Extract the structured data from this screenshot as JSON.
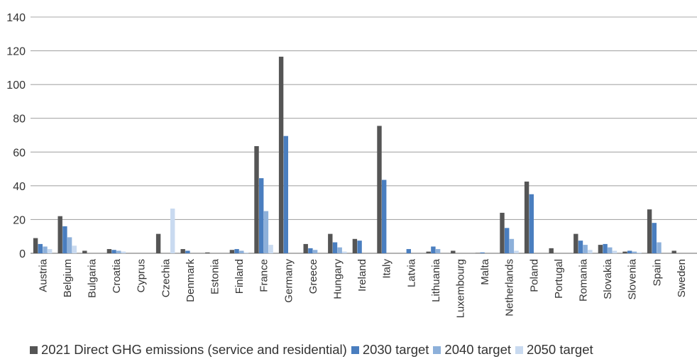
{
  "chart_data": {
    "type": "bar",
    "title": "",
    "xlabel": "",
    "ylabel": "",
    "ylim": [
      0,
      140
    ],
    "yticks": [
      0,
      20,
      40,
      60,
      80,
      100,
      120,
      140
    ],
    "grid": true,
    "legend_position": "bottom",
    "categories": [
      "Austria",
      "Belgium",
      "Bulgaria",
      "Croatia",
      "Cyprus",
      "Czechia",
      "Denmark",
      "Estonia",
      "Finland",
      "France",
      "Germany",
      "Greece",
      "Hungary",
      "Ireland",
      "Italy",
      "Latvia",
      "Lithuania",
      "Luxembourg",
      "Malta",
      "Netherlands",
      "Poland",
      "Portugal",
      "Romania",
      "Slovakia",
      "Slovenia",
      "Spain",
      "Sweden"
    ],
    "series": [
      {
        "name": "2021 Direct GHG emissions (service and residential)",
        "color": "#555555",
        "values": [
          9,
          22,
          1.5,
          2.5,
          0,
          11.5,
          2.5,
          0.5,
          2,
          63.5,
          116.5,
          5.5,
          11.5,
          8.5,
          75.5,
          0,
          1,
          1.5,
          0.2,
          24,
          42.5,
          3,
          11.5,
          5,
          1,
          26,
          1.5
        ]
      },
      {
        "name": "2030 target",
        "color": "#4a7ebf",
        "values": [
          5.5,
          16,
          0,
          2,
          0,
          0,
          1.5,
          0,
          2.5,
          44.5,
          69.5,
          3,
          6.5,
          7.5,
          43.5,
          2.5,
          4,
          0,
          0.5,
          15,
          35,
          0,
          7.5,
          5.5,
          1.5,
          18,
          0
        ]
      },
      {
        "name": "2040 target",
        "color": "#8db0da",
        "values": [
          4,
          9.5,
          0,
          1.5,
          0,
          0,
          0,
          0,
          1.5,
          25,
          0,
          2,
          3.5,
          0,
          0,
          0,
          2.5,
          0,
          0,
          8.5,
          0,
          0,
          5,
          3.5,
          1,
          6.5,
          0
        ]
      },
      {
        "name": "2050 target",
        "color": "#c9daf0",
        "values": [
          2.5,
          4.5,
          0,
          1,
          0,
          26.5,
          0,
          0,
          0.5,
          5,
          0,
          0,
          1,
          0,
          0,
          0,
          0,
          0,
          0,
          1.5,
          0,
          0,
          2,
          1.5,
          0.5,
          0,
          0
        ]
      }
    ]
  }
}
